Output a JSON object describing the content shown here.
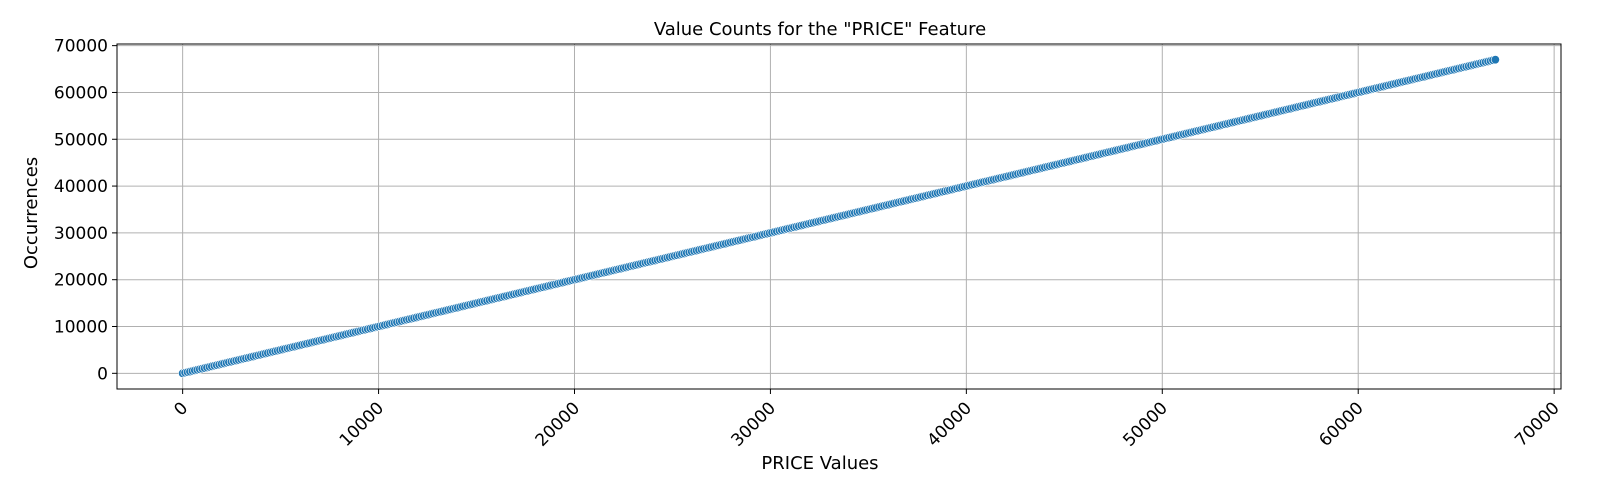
{
  "chart_data": {
    "type": "scatter",
    "title": "Value Counts for the \"PRICE\" Feature",
    "xlabel": "PRICE Values",
    "ylabel": "Occurrences",
    "xlim": [
      -3350,
      70350
    ],
    "ylim": [
      -3350,
      70350
    ],
    "xticks": [
      0,
      10000,
      20000,
      30000,
      40000,
      50000,
      60000,
      70000
    ],
    "yticks": [
      0,
      10000,
      20000,
      30000,
      40000,
      50000,
      60000,
      70000
    ],
    "x_tick_rotation_deg": 45,
    "grid": true,
    "color": "#1f77b4",
    "series": [
      {
        "x_start": 0,
        "x_end": 67000,
        "count": 540,
        "relation": "y = x"
      }
    ]
  }
}
